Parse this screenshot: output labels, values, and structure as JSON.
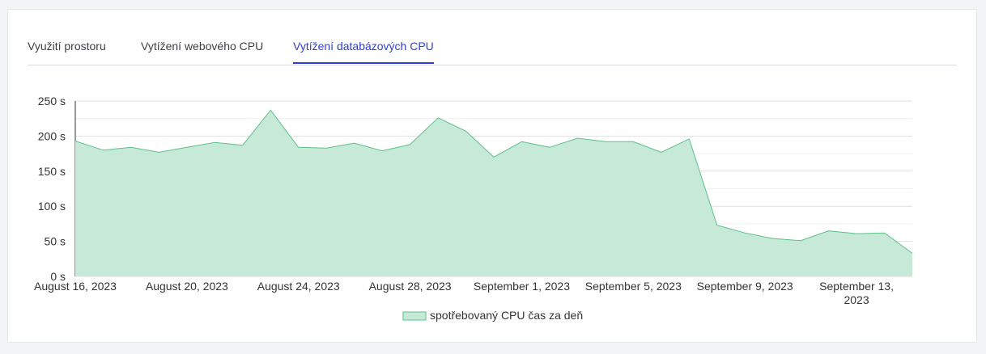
{
  "tabs": [
    {
      "label": "Využití prostoru",
      "active": false
    },
    {
      "label": "Vytížení webového CPU",
      "active": false
    },
    {
      "label": "Vytížení databázových CPU",
      "active": true
    }
  ],
  "colors": {
    "accent": "#2c3fd0",
    "area_fill": "#c6ead7",
    "area_line": "#5cc08a"
  },
  "chart_data": {
    "type": "area",
    "ylim": [
      0,
      250
    ],
    "y_ticks": [
      "0 s",
      "50 s",
      "100 s",
      "150 s",
      "200 s",
      "250 s"
    ],
    "x_ticks": [
      {
        "date": "2023-08-16",
        "label": [
          "August 16, 2023"
        ]
      },
      {
        "date": "2023-08-20",
        "label": [
          "August 20, 2023"
        ]
      },
      {
        "date": "2023-08-24",
        "label": [
          "August 24, 2023"
        ]
      },
      {
        "date": "2023-08-28",
        "label": [
          "August 28, 2023"
        ]
      },
      {
        "date": "2023-09-01",
        "label": [
          "September 1, 2023"
        ]
      },
      {
        "date": "2023-09-05",
        "label": [
          "September 5, 2023"
        ]
      },
      {
        "date": "2023-09-09",
        "label": [
          "September 9, 2023"
        ]
      },
      {
        "date": "2023-09-13",
        "label": [
          "September 13,",
          "2023"
        ]
      }
    ],
    "x": [
      "2023-08-16",
      "2023-08-17",
      "2023-08-18",
      "2023-08-19",
      "2023-08-20",
      "2023-08-21",
      "2023-08-22",
      "2023-08-23",
      "2023-08-24",
      "2023-08-25",
      "2023-08-26",
      "2023-08-27",
      "2023-08-28",
      "2023-08-29",
      "2023-08-30",
      "2023-08-31",
      "2023-09-01",
      "2023-09-02",
      "2023-09-03",
      "2023-09-04",
      "2023-09-05",
      "2023-09-06",
      "2023-09-07",
      "2023-09-08",
      "2023-09-09",
      "2023-09-10",
      "2023-09-11",
      "2023-09-12",
      "2023-09-13",
      "2023-09-14",
      "2023-09-15"
    ],
    "series": [
      {
        "name": "spotřebovaný CPU čas za deň",
        "values": [
          193,
          180,
          184,
          177,
          184,
          191,
          187,
          237,
          184,
          183,
          190,
          179,
          188,
          226,
          207,
          170,
          192,
          184,
          197,
          192,
          192,
          177,
          196,
          73,
          62,
          54,
          51,
          65,
          61,
          62,
          33
        ]
      }
    ],
    "legend": "bottom",
    "grid": true
  }
}
